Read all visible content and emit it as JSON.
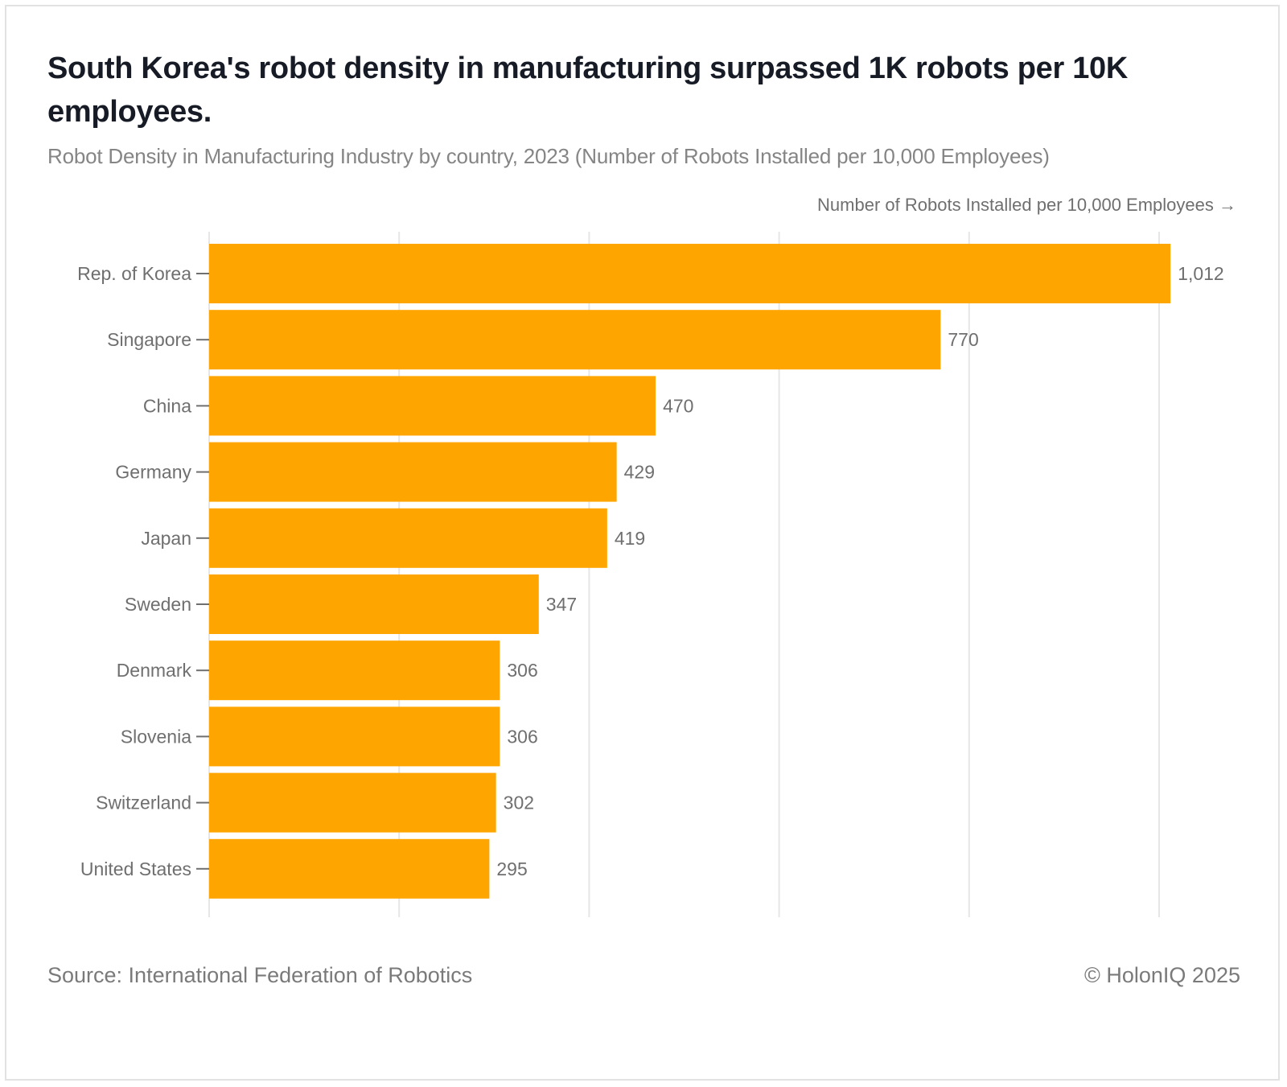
{
  "header": {
    "title": "South Korea's robot density in manufacturing surpassed 1K robots per 10K employees.",
    "subtitle": "Robot Density in Manufacturing Industry by country, 2023 (Number of Robots Installed per 10,000 Employees)"
  },
  "footer": {
    "source": "Source: International Federation of Robotics",
    "copyright": "© HolonIQ 2025"
  },
  "colors": {
    "bar": "#FFA500",
    "gridline": "#e6e6e6",
    "text": "#6f6f6f"
  },
  "chart_data": {
    "type": "bar",
    "orientation": "horizontal",
    "title": "South Korea's robot density in manufacturing surpassed 1K robots per 10K employees.",
    "subtitle": "Robot Density in Manufacturing Industry by country, 2023 (Number of Robots Installed per 10,000 Employees)",
    "xlabel": "Number of Robots Installed per 10,000 Employees →",
    "ylabel": "",
    "categories": [
      "Rep. of Korea",
      "Singapore",
      "China",
      "Germany",
      "Japan",
      "Sweden",
      "Denmark",
      "Slovenia",
      "Switzerland",
      "United States"
    ],
    "values": [
      1012,
      770,
      470,
      429,
      419,
      347,
      306,
      306,
      302,
      295
    ],
    "value_labels": [
      "1,012",
      "770",
      "470",
      "429",
      "419",
      "347",
      "306",
      "306",
      "302",
      "295"
    ],
    "xlim": [
      0,
      1000
    ],
    "gridlines_x": [
      0,
      200,
      400,
      600,
      800,
      1000
    ],
    "x_tick_labels_visible": false,
    "grid": true,
    "legend": "none"
  }
}
